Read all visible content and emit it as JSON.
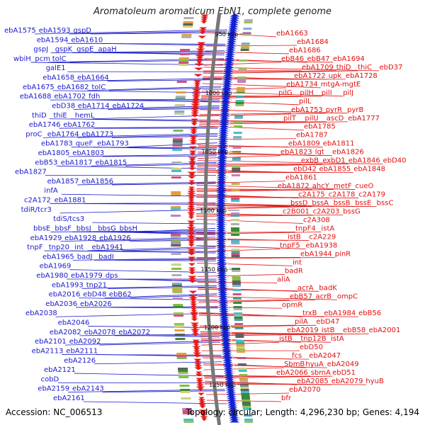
{
  "title": "Aromatoleum aromaticum EbN1, complete genome",
  "footer": {
    "accession": "Accession: NC_006513",
    "summary": "Topology: circular; Length: 4,296,230 bp; Genes: 4,194"
  },
  "colors": {
    "left_labels": "#1a1acc",
    "right_labels": "#e01010",
    "backbone": "#777777"
  },
  "scale_marks": [
    "950 kbp",
    "1000 kbp",
    "1050 kbp",
    "1100 kbp",
    "1150 kbp",
    "1200 kbp",
    "1250 kbp"
  ],
  "left_labels": [
    [
      "ebA1575",
      "ebA1593",
      "gspD"
    ],
    [
      "ebA1594",
      "ebA1610"
    ],
    [
      "gspJ",
      "gspK",
      "gspE",
      "apaH"
    ],
    [
      "wbiH",
      "pcm",
      "tolC"
    ],
    [
      "galE1"
    ],
    [
      "ebA1658",
      "ebA1664"
    ],
    [
      "ebA1675",
      "ebA1682",
      "tolC"
    ],
    [
      "ebA1688",
      "ebA1702",
      "fdh"
    ],
    [
      "ebD38",
      "ebA1714",
      "ebA1724"
    ],
    [
      "thiD",
      "thiE",
      "hemL"
    ],
    [
      "ebA1746",
      "ebA1762"
    ],
    [
      "proC",
      "ebA1764",
      "ebA1773"
    ],
    [
      "ebA1783",
      "queF",
      "ebA1793"
    ],
    [
      "ebA1805",
      "ebA1803"
    ],
    [
      "ebB53",
      "ebA1817",
      "ebA1815"
    ],
    [
      "ebA1827"
    ],
    [
      "ebA1857",
      "ebA1856"
    ],
    [
      "infA"
    ],
    [
      "c2A172",
      "ebA1881"
    ],
    [
      "tdiR/tcr3"
    ],
    [
      "tdiS/tcs3"
    ],
    [
      "bbsE",
      "bbsF",
      "bbsJ",
      "bbsG",
      "bbsH"
    ],
    [
      "ebA1929",
      "ebA1928",
      "ebA1926"
    ],
    [
      "tnpF",
      "tnp20",
      "int",
      "ebA1941"
    ],
    [
      "ebA1965",
      "badJ",
      "badI"
    ],
    [
      "ebA1969"
    ],
    [
      "ebA1980",
      "ebA1979",
      "dps"
    ],
    [
      "ebA1993",
      "tnp21"
    ],
    [
      "ebA2016",
      "ebD48",
      "ebB62"
    ],
    [
      "ebA2036",
      "ebA2026"
    ],
    [
      "ebA2038"
    ],
    [
      "ebA2046"
    ],
    [
      "ebA2082",
      "ebA2078",
      "ebA2072"
    ],
    [
      "ebA2101",
      "ebA2092"
    ],
    [
      "ebA2113",
      "ebA2111"
    ],
    [
      "ebA2126"
    ],
    [
      "ebA2121"
    ],
    [
      "cobD"
    ],
    [
      "ebA2159",
      "ebA2143"
    ],
    [
      "ebA2161"
    ]
  ],
  "right_labels": [
    [
      "ebA1663"
    ],
    [
      "ebA1684"
    ],
    [
      "ebA1686"
    ],
    [
      "ebB46",
      "ebB47",
      "ebA1694"
    ],
    [
      "ebA1709",
      "thiD",
      "thiC",
      "ebD37"
    ],
    [
      "ebA1722",
      "upk",
      "ebA1728"
    ],
    [
      "ebA1734",
      "mtgA-mgtE"
    ],
    [
      "pilG",
      "pilH",
      "pilI",
      "pilJ"
    ],
    [
      "pilL"
    ],
    [
      "ebA1753",
      "pyrR",
      "pyrB"
    ],
    [
      "pilT",
      "pilU",
      "ascD",
      "ebA1777"
    ],
    [
      "ebA1785"
    ],
    [
      "ebA1787"
    ],
    [
      "ebA1809",
      "ebA1811"
    ],
    [
      "ebA1823",
      "lgt",
      "ebA1826"
    ],
    [
      "exbB",
      "exbD1",
      "ebA1846",
      "ebD40"
    ],
    [
      "ebD42",
      "ebA1855",
      "ebA1848"
    ],
    [
      "ebA1861"
    ],
    [
      "ebA1872",
      "ahcY",
      "metF",
      "cueO"
    ],
    [
      "c2A175",
      "c2A178",
      "c2A179"
    ],
    [
      "bssD",
      "bssA",
      "bssB",
      "bssE",
      "bssC"
    ],
    [
      "c2B001",
      "c2A203",
      "bssG"
    ],
    [
      "c2A308"
    ],
    [
      "tnpF4",
      "istA"
    ],
    [
      "istB",
      "c2A229"
    ],
    [
      "tnpF5",
      "ebA1938"
    ],
    [
      "ebA1944",
      "pinR"
    ],
    [
      "int"
    ],
    [
      "badR"
    ],
    [
      "aliA"
    ],
    [
      "acrA",
      "badK"
    ],
    [
      "ebB57",
      "acrB",
      "ompC"
    ],
    [
      "opmR"
    ],
    [
      "trxB",
      "ebA1984",
      "ebB56"
    ],
    [
      "pilA",
      "ebD47"
    ],
    [
      "ebA2019",
      "istB",
      "ebB58",
      "ebA2001"
    ],
    [
      "istB",
      "tnp12B",
      "istA"
    ],
    [
      "ebD50"
    ],
    [
      "fcs",
      "ebA2047"
    ],
    [
      "SbmB",
      "hyuA",
      "ebA2049"
    ],
    [
      "ebA2066",
      "sbmA",
      "ebD51"
    ],
    [
      "ebA2085",
      "ebA2079",
      "hyuB"
    ],
    [
      "ebA2070"
    ],
    [
      "bfr"
    ]
  ]
}
